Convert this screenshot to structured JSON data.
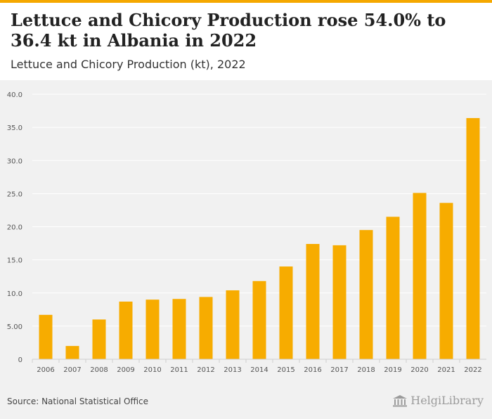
{
  "header": {
    "title": "Lettuce and Chicory Production rose 54.0% to 36.4 kt in Albania in 2022",
    "subtitle": "Lettuce and Chicory Production (kt), 2022"
  },
  "footer": {
    "source": "Source: National Statistical Office",
    "logo_text": "HelgiLibrary"
  },
  "colors": {
    "bar": "#f7ac00",
    "accent": "#f5a800",
    "background": "#f1f1f1",
    "grid": "#ffffff"
  },
  "chart_data": {
    "type": "bar",
    "categories": [
      "2006",
      "2007",
      "2008",
      "2009",
      "2010",
      "2011",
      "2012",
      "2013",
      "2014",
      "2015",
      "2016",
      "2017",
      "2018",
      "2019",
      "2020",
      "2021",
      "2022"
    ],
    "values": [
      6.7,
      2.0,
      6.0,
      8.7,
      9.0,
      9.1,
      9.4,
      10.4,
      11.8,
      14.0,
      17.4,
      17.2,
      19.5,
      21.5,
      25.1,
      23.6,
      36.4
    ],
    "ylim": [
      0,
      40
    ],
    "yticks": [
      0,
      5,
      10,
      15,
      20,
      25,
      30,
      35,
      40
    ],
    "ytick_labels": [
      "0",
      "5.00",
      "10.0",
      "15.0",
      "20.0",
      "25.0",
      "30.0",
      "35.0",
      "40.0"
    ],
    "grid": true,
    "title": "Lettuce and Chicory Production rose 54.0% to 36.4 kt in Albania in 2022",
    "subtitle": "Lettuce and Chicory Production (kt), 2022"
  }
}
